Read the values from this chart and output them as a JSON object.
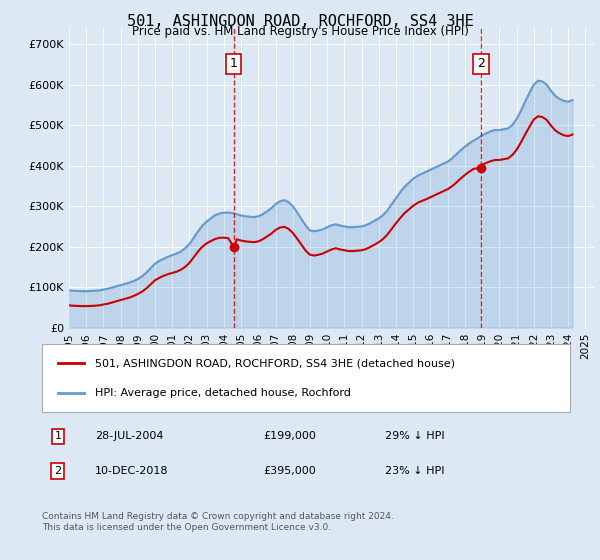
{
  "title": "501, ASHINGDON ROAD, ROCHFORD, SS4 3HE",
  "subtitle": "Price paid vs. HM Land Registry's House Price Index (HPI)",
  "background_color": "#dce9f5",
  "plot_bg_color": "#dce9f5",
  "ylabel_ticks": [
    "£0",
    "£100K",
    "£200K",
    "£300K",
    "£400K",
    "£500K",
    "£600K",
    "£700K"
  ],
  "ytick_values": [
    0,
    100000,
    200000,
    300000,
    400000,
    500000,
    600000,
    700000
  ],
  "ylim": [
    0,
    740000
  ],
  "xlim_start": 1995.0,
  "xlim_end": 2025.5,
  "red_line_color": "#cc0000",
  "blue_line_color": "#6699cc",
  "sale1_x": 2004.57,
  "sale1_y": 199000,
  "sale2_x": 2018.94,
  "sale2_y": 395000,
  "legend_label_red": "501, ASHINGDON ROAD, ROCHFORD, SS4 3HE (detached house)",
  "legend_label_blue": "HPI: Average price, detached house, Rochford",
  "annotation1_label": "1",
  "annotation2_label": "2",
  "table_row1": "1    28-JUL-2004    £199,000    29% ↓ HPI",
  "table_row2": "2    10-DEC-2018    £395,000    23% ↓ HPI",
  "footer": "Contains HM Land Registry data © Crown copyright and database right 2024.\nThis data is licensed under the Open Government Licence v3.0.",
  "hpi_years": [
    1995.0,
    1995.25,
    1995.5,
    1995.75,
    1996.0,
    1996.25,
    1996.5,
    1996.75,
    1997.0,
    1997.25,
    1997.5,
    1997.75,
    1998.0,
    1998.25,
    1998.5,
    1998.75,
    1999.0,
    1999.25,
    1999.5,
    1999.75,
    2000.0,
    2000.25,
    2000.5,
    2000.75,
    2001.0,
    2001.25,
    2001.5,
    2001.75,
    2002.0,
    2002.25,
    2002.5,
    2002.75,
    2003.0,
    2003.25,
    2003.5,
    2003.75,
    2004.0,
    2004.25,
    2004.5,
    2004.75,
    2005.0,
    2005.25,
    2005.5,
    2005.75,
    2006.0,
    2006.25,
    2006.5,
    2006.75,
    2007.0,
    2007.25,
    2007.5,
    2007.75,
    2008.0,
    2008.25,
    2008.5,
    2008.75,
    2009.0,
    2009.25,
    2009.5,
    2009.75,
    2010.0,
    2010.25,
    2010.5,
    2010.75,
    2011.0,
    2011.25,
    2011.5,
    2011.75,
    2012.0,
    2012.25,
    2012.5,
    2012.75,
    2013.0,
    2013.25,
    2013.5,
    2013.75,
    2014.0,
    2014.25,
    2014.5,
    2014.75,
    2015.0,
    2015.25,
    2015.5,
    2015.75,
    2016.0,
    2016.25,
    2016.5,
    2016.75,
    2017.0,
    2017.25,
    2017.5,
    2017.75,
    2018.0,
    2018.25,
    2018.5,
    2018.75,
    2019.0,
    2019.25,
    2019.5,
    2019.75,
    2020.0,
    2020.25,
    2020.5,
    2020.75,
    2021.0,
    2021.25,
    2021.5,
    2021.75,
    2022.0,
    2022.25,
    2022.5,
    2022.75,
    2023.0,
    2023.25,
    2023.5,
    2023.75,
    2024.0,
    2024.25
  ],
  "hpi_values": [
    92000,
    91000,
    90500,
    90000,
    90000,
    90500,
    91000,
    92000,
    94000,
    96000,
    99000,
    102000,
    105000,
    108000,
    111000,
    115000,
    120000,
    127000,
    136000,
    147000,
    158000,
    165000,
    170000,
    175000,
    179000,
    183000,
    188000,
    196000,
    207000,
    222000,
    238000,
    252000,
    262000,
    270000,
    278000,
    282000,
    284000,
    284000,
    283000,
    280000,
    277000,
    275000,
    274000,
    273000,
    275000,
    280000,
    287000,
    295000,
    305000,
    312000,
    315000,
    310000,
    300000,
    285000,
    268000,
    252000,
    240000,
    238000,
    240000,
    243000,
    248000,
    253000,
    255000,
    252000,
    250000,
    248000,
    248000,
    249000,
    250000,
    253000,
    258000,
    264000,
    270000,
    278000,
    290000,
    305000,
    320000,
    335000,
    348000,
    358000,
    368000,
    375000,
    380000,
    385000,
    390000,
    395000,
    400000,
    405000,
    410000,
    418000,
    428000,
    438000,
    447000,
    455000,
    462000,
    468000,
    475000,
    480000,
    485000,
    488000,
    488000,
    490000,
    492000,
    500000,
    515000,
    535000,
    558000,
    580000,
    600000,
    610000,
    608000,
    600000,
    585000,
    572000,
    565000,
    560000,
    558000,
    562000
  ],
  "red_years": [
    1995.0,
    1995.25,
    1995.5,
    1995.75,
    1996.0,
    1996.25,
    1996.5,
    1996.75,
    1997.0,
    1997.25,
    1997.5,
    1997.75,
    1998.0,
    1998.25,
    1998.5,
    1998.75,
    1999.0,
    1999.25,
    1999.5,
    1999.75,
    2000.0,
    2000.25,
    2000.5,
    2000.75,
    2001.0,
    2001.25,
    2001.5,
    2001.75,
    2002.0,
    2002.25,
    2002.5,
    2002.75,
    2003.0,
    2003.25,
    2003.5,
    2003.75,
    2004.0,
    2004.25,
    2004.57,
    2004.75,
    2005.0,
    2005.25,
    2005.5,
    2005.75,
    2006.0,
    2006.25,
    2006.5,
    2006.75,
    2007.0,
    2007.25,
    2007.5,
    2007.75,
    2008.0,
    2008.25,
    2008.5,
    2008.75,
    2009.0,
    2009.25,
    2009.5,
    2009.75,
    2010.0,
    2010.25,
    2010.5,
    2010.75,
    2011.0,
    2011.25,
    2011.5,
    2011.75,
    2012.0,
    2012.25,
    2012.5,
    2012.75,
    2013.0,
    2013.25,
    2013.5,
    2013.75,
    2014.0,
    2014.25,
    2014.5,
    2014.75,
    2015.0,
    2015.25,
    2015.5,
    2015.75,
    2016.0,
    2016.25,
    2016.5,
    2016.75,
    2017.0,
    2017.25,
    2017.5,
    2017.75,
    2018.0,
    2018.25,
    2018.5,
    2018.94,
    2019.0,
    2019.25,
    2019.5,
    2019.75,
    2020.0,
    2020.25,
    2020.5,
    2020.75,
    2021.0,
    2021.25,
    2021.5,
    2021.75,
    2022.0,
    2022.25,
    2022.5,
    2022.75,
    2023.0,
    2023.25,
    2023.5,
    2023.75,
    2024.0,
    2024.25
  ],
  "red_values": [
    55000,
    54000,
    53500,
    53000,
    53000,
    53500,
    54000,
    55000,
    57000,
    59000,
    62000,
    65000,
    68000,
    71000,
    74000,
    78000,
    83000,
    89000,
    97000,
    107000,
    117000,
    123000,
    128000,
    132000,
    135000,
    138000,
    143000,
    150000,
    160000,
    174000,
    188000,
    200000,
    208000,
    214000,
    219000,
    222000,
    222000,
    221000,
    199000,
    218000,
    215000,
    213000,
    212000,
    211000,
    213000,
    218000,
    225000,
    232000,
    241000,
    247000,
    249000,
    244000,
    234000,
    220000,
    205000,
    190000,
    180000,
    178000,
    180000,
    183000,
    188000,
    193000,
    196000,
    193000,
    191000,
    189000,
    189000,
    190000,
    191000,
    194000,
    199000,
    205000,
    211000,
    219000,
    230000,
    244000,
    258000,
    271000,
    283000,
    292000,
    301000,
    308000,
    313000,
    317000,
    322000,
    327000,
    332000,
    337000,
    342000,
    349000,
    358000,
    368000,
    377000,
    385000,
    392000,
    395000,
    402000,
    407000,
    411000,
    414000,
    414000,
    416000,
    418000,
    426000,
    439000,
    457000,
    477000,
    496000,
    514000,
    522000,
    520000,
    513000,
    499000,
    487000,
    480000,
    475000,
    473000,
    477000
  ]
}
